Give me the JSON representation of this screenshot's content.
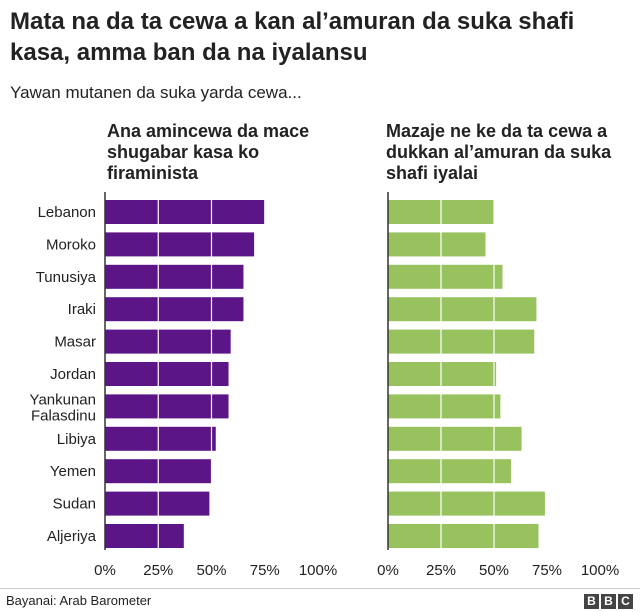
{
  "title": "Mata na da ta cewa a kan al’amuran da suka shafi kasa, amma ban da na iyalansu",
  "subtitle": "Yawan mutanen da suka yarda cewa...",
  "colors": {
    "left": "#5c1586",
    "right": "#97c25e",
    "axis": "#333333",
    "gridline": "#ffffff"
  },
  "chart_data": [
    {
      "type": "bar",
      "orientation": "horizontal",
      "title": "Ana amincewa da mace shugabar kasa ko firaminista",
      "categories": [
        "Lebanon",
        "Moroko",
        "Tunusiya",
        "Iraki",
        "Masar",
        "Jordan",
        "Yankunan Falasdinu",
        "Libiya",
        "Yemen",
        "Sudan",
        "Aljeriya"
      ],
      "values": [
        75,
        70,
        65,
        65,
        59,
        58,
        58,
        52,
        50,
        49,
        37
      ],
      "xlim": [
        0,
        100
      ],
      "ticks": [
        "0%",
        "25%",
        "50%",
        "75%",
        "100%"
      ]
    },
    {
      "type": "bar",
      "orientation": "horizontal",
      "title": "Mazaje ne ke da ta cewa a dukkan al’amuran da suka shafi iyalai",
      "categories": [
        "Lebanon",
        "Moroko",
        "Tunusiya",
        "Iraki",
        "Masar",
        "Jordan",
        "Yankunan Falasdinu",
        "Libiya",
        "Yemen",
        "Sudan",
        "Aljeriya"
      ],
      "values": [
        50,
        46,
        54,
        70,
        69,
        51,
        53,
        63,
        58,
        74,
        71
      ],
      "xlim": [
        0,
        100
      ],
      "ticks": [
        "0%",
        "25%",
        "50%",
        "75%",
        "100%"
      ]
    }
  ],
  "footer": {
    "source": "Bayanai: Arab Barometer",
    "logo": [
      "B",
      "B",
      "C"
    ]
  }
}
